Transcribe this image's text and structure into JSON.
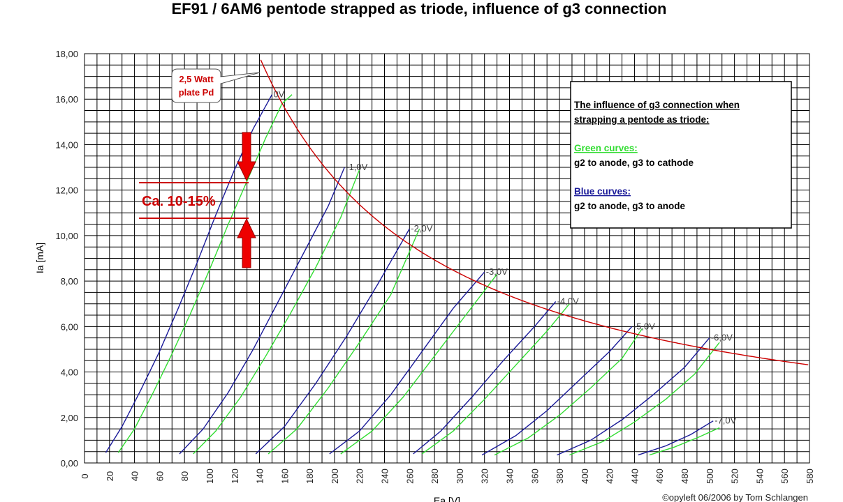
{
  "chart_data": {
    "type": "line",
    "title": "EF91 / 6AM6 pentode strapped as triode, influence of g3 connection",
    "xlabel": "Ea [V]",
    "ylabel": "Ia [mA]",
    "xlim": [
      0,
      580
    ],
    "ylim": [
      0,
      18
    ],
    "x_ticks": [
      "0",
      "20",
      "40",
      "60",
      "80",
      "100",
      "120",
      "140",
      "160",
      "180",
      "200",
      "220",
      "240",
      "260",
      "280",
      "300",
      "320",
      "340",
      "360",
      "380",
      "400",
      "420",
      "440",
      "460",
      "480",
      "500",
      "520",
      "540",
      "560",
      "580"
    ],
    "y_ticks": [
      "0,00",
      "2,00",
      "4,00",
      "6,00",
      "8,00",
      "10,00",
      "12,00",
      "14,00",
      "16,00",
      "18,00"
    ],
    "grid": true,
    "colors": {
      "green": "#33dd33",
      "blue": "#1a1a99",
      "red": "#cc0000"
    },
    "curve_labels": [
      "0V",
      "-1,0V",
      "-2,0V",
      "-3,0V",
      "-4,0V",
      "-5,0V",
      "-6,0V",
      "-7,0V"
    ],
    "series_blue": [
      {
        "points": [
          [
            17,
            0.45
          ],
          [
            30,
            1.6
          ],
          [
            45,
            3.2
          ],
          [
            60,
            4.9
          ],
          [
            75,
            6.8
          ],
          [
            90,
            8.8
          ],
          [
            105,
            10.9
          ],
          [
            120,
            12.9
          ],
          [
            135,
            14.7
          ],
          [
            150,
            16.2
          ]
        ]
      },
      {
        "points": [
          [
            76,
            0.4
          ],
          [
            95,
            1.5
          ],
          [
            115,
            3.1
          ],
          [
            135,
            5.0
          ],
          [
            155,
            7.1
          ],
          [
            175,
            9.2
          ],
          [
            195,
            11.3
          ],
          [
            208,
            13.0
          ]
        ]
      },
      {
        "points": [
          [
            137,
            0.4
          ],
          [
            160,
            1.6
          ],
          [
            185,
            3.5
          ],
          [
            210,
            5.6
          ],
          [
            235,
            7.9
          ],
          [
            260,
            10.3
          ]
        ]
      },
      {
        "points": [
          [
            196,
            0.4
          ],
          [
            220,
            1.4
          ],
          [
            245,
            3.0
          ],
          [
            270,
            4.9
          ],
          [
            295,
            6.8
          ],
          [
            320,
            8.4
          ]
        ]
      },
      {
        "points": [
          [
            263,
            0.4
          ],
          [
            285,
            1.4
          ],
          [
            310,
            2.9
          ],
          [
            335,
            4.5
          ],
          [
            360,
            6.0
          ],
          [
            377,
            7.1
          ]
        ]
      },
      {
        "points": [
          [
            318,
            0.35
          ],
          [
            345,
            1.2
          ],
          [
            370,
            2.3
          ],
          [
            395,
            3.6
          ],
          [
            420,
            4.9
          ],
          [
            438,
            6.0
          ]
        ]
      },
      {
        "points": [
          [
            378,
            0.35
          ],
          [
            405,
            1.0
          ],
          [
            430,
            1.9
          ],
          [
            455,
            3.0
          ],
          [
            480,
            4.2
          ],
          [
            500,
            5.5
          ]
        ]
      },
      {
        "points": [
          [
            443,
            0.35
          ],
          [
            465,
            0.75
          ],
          [
            485,
            1.25
          ],
          [
            503,
            1.85
          ]
        ]
      }
    ],
    "series_green": [
      {
        "points": [
          [
            27,
            0.45
          ],
          [
            40,
            1.5
          ],
          [
            55,
            3.1
          ],
          [
            70,
            4.8
          ],
          [
            85,
            6.6
          ],
          [
            100,
            8.5
          ],
          [
            115,
            10.5
          ],
          [
            130,
            12.4
          ],
          [
            145,
            14.3
          ],
          [
            158,
            15.8
          ],
          [
            166,
            16.2
          ]
        ]
      },
      {
        "points": [
          [
            87,
            0.4
          ],
          [
            105,
            1.4
          ],
          [
            125,
            2.9
          ],
          [
            145,
            4.7
          ],
          [
            165,
            6.6
          ],
          [
            185,
            8.6
          ],
          [
            205,
            10.8
          ],
          [
            220,
            12.9
          ]
        ]
      },
      {
        "points": [
          [
            147,
            0.4
          ],
          [
            170,
            1.5
          ],
          [
            195,
            3.3
          ],
          [
            220,
            5.3
          ],
          [
            245,
            7.4
          ],
          [
            268,
            10.3
          ]
        ]
      },
      {
        "points": [
          [
            205,
            0.4
          ],
          [
            230,
            1.4
          ],
          [
            255,
            2.9
          ],
          [
            280,
            4.7
          ],
          [
            305,
            6.5
          ],
          [
            330,
            8.3
          ]
        ]
      },
      {
        "points": [
          [
            270,
            0.4
          ],
          [
            295,
            1.4
          ],
          [
            320,
            2.8
          ],
          [
            345,
            4.3
          ],
          [
            370,
            5.8
          ],
          [
            388,
            7.0
          ]
        ]
      },
      {
        "points": [
          [
            328,
            0.35
          ],
          [
            355,
            1.1
          ],
          [
            380,
            2.1
          ],
          [
            405,
            3.3
          ],
          [
            430,
            4.6
          ],
          [
            446,
            5.9
          ]
        ]
      },
      {
        "points": [
          [
            388,
            0.35
          ],
          [
            415,
            0.95
          ],
          [
            440,
            1.8
          ],
          [
            465,
            2.8
          ],
          [
            488,
            3.9
          ],
          [
            508,
            5.3
          ]
        ]
      },
      {
        "points": [
          [
            452,
            0.35
          ],
          [
            472,
            0.7
          ],
          [
            492,
            1.15
          ],
          [
            508,
            1.55
          ]
        ]
      }
    ],
    "pd_curve": {
      "watt": 2.5,
      "x_from": 141,
      "x_to": 580,
      "x_step": 2
    },
    "annotations": {
      "pd_callout_line1": "2,5 Watt",
      "pd_callout_line2": "plate Pd",
      "diff_label": "Ca. 10-15%",
      "copyright": "©opyleft 06/2006 by Tom Schlangen"
    },
    "legend": {
      "heading_line1": "The influence of g3 connection when",
      "heading_line2": "strapping a pentode as triode:",
      "green_title": "Green curves:",
      "green_desc": "g2 to anode, g3 to cathode",
      "blue_title": "Blue curves:",
      "blue_desc": "g2 to anode, g3 to anode"
    }
  }
}
